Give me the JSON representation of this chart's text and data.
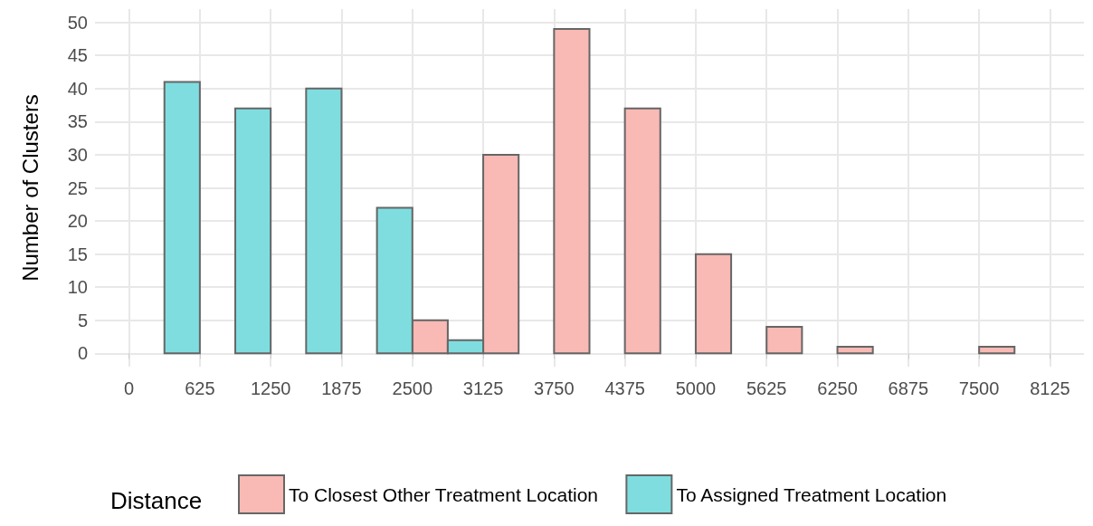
{
  "chart_data": {
    "type": "histogram",
    "ylabel": "Number of Clusters",
    "legend_title": "Distance",
    "bins": [
      0,
      625,
      1250,
      1875,
      2500,
      3125,
      3750,
      4375,
      5000,
      5625,
      6250,
      6875,
      7500,
      8125
    ],
    "series": [
      {
        "name": "To Closest Other Treatment Location",
        "color": "#f9b9b4",
        "values": [
          0,
          0,
          0,
          0,
          5,
          30,
          49,
          37,
          15,
          4,
          1,
          0,
          1
        ]
      },
      {
        "name": "To Assigned Treatment Location",
        "color": "#7fdde0",
        "values": [
          41,
          37,
          40,
          22,
          2,
          0,
          0,
          0,
          0,
          0,
          0,
          0,
          0
        ]
      }
    ],
    "xlim": [
      -300,
      8425
    ],
    "xticks": [
      0,
      625,
      1250,
      1875,
      2500,
      3125,
      3750,
      4375,
      5000,
      5625,
      6250,
      6875,
      7500,
      8125
    ],
    "ylim": [
      -2,
      52
    ],
    "yticks": [
      0,
      5,
      10,
      15,
      20,
      25,
      30,
      35,
      40,
      45,
      50
    ],
    "grid": true,
    "legend": "bottom"
  }
}
